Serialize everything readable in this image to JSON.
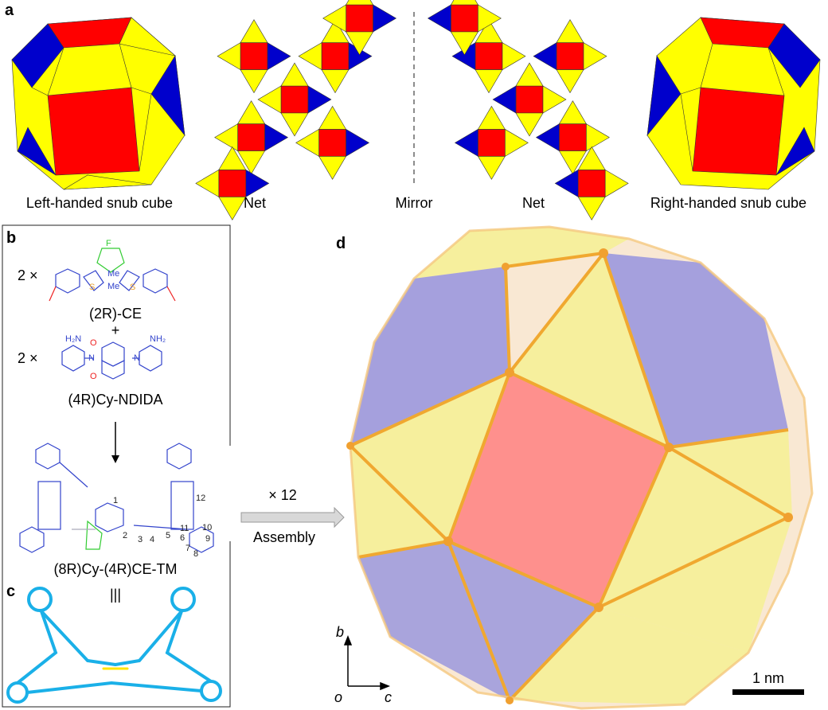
{
  "panel_a": {
    "label": "a",
    "captions": [
      "Left-handed snub cube",
      "Net",
      "Mirror",
      "Net",
      "Right-handed snub cube"
    ],
    "colors": {
      "square": "#ff0000",
      "triangle_a": "#ffff00",
      "triangle_b": "#0000cc"
    }
  },
  "panel_b": {
    "label": "b",
    "multiplier_1": "2 ×",
    "compound_1": "(2R)-CE",
    "plus": "+",
    "multiplier_2": "2 ×",
    "compound_2": "(4R)Cy-NDIDA",
    "product": "(8R)Cy-(4R)CE-TM",
    "atoms": {
      "F": "F",
      "S": "S",
      "Me": "Me",
      "O": "O",
      "N": "N",
      "NH2": "NH₂",
      "H2N": "H₂N"
    },
    "numbering": [
      "1",
      "2",
      "3",
      "4",
      "5",
      "6",
      "7",
      "8",
      "9",
      "10",
      "11",
      "12"
    ]
  },
  "panel_c": {
    "label": "c",
    "identity": "|||"
  },
  "assembly": {
    "multiplier": "× 12",
    "label": "Assembly"
  },
  "panel_d": {
    "label": "d",
    "axes": {
      "up": "b",
      "origin": "o",
      "right": "c"
    },
    "scale_bar": "1 nm",
    "colors": {
      "frame": "#f0a830",
      "square_face": "#ff8080",
      "triangle_face": "#f5f090",
      "blue_face": "#8888e0"
    }
  }
}
